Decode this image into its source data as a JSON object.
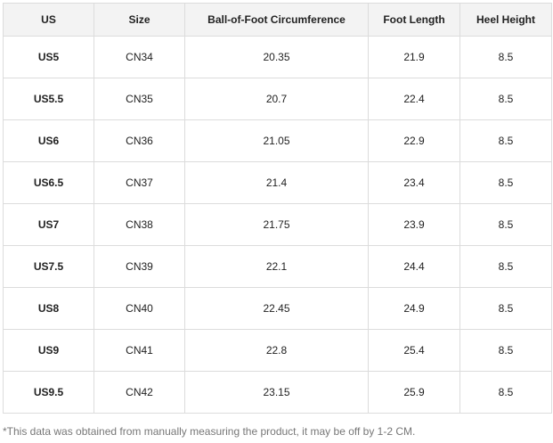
{
  "table": {
    "header": [
      "US",
      "Size",
      "Ball-of-Foot Circumference",
      "Foot Length",
      "Heel Height"
    ],
    "rows": [
      [
        "US5",
        "CN34",
        "20.35",
        "21.9",
        "8.5"
      ],
      [
        "US5.5",
        "CN35",
        "20.7",
        "22.4",
        "8.5"
      ],
      [
        "US6",
        "CN36",
        "21.05",
        "22.9",
        "8.5"
      ],
      [
        "US6.5",
        "CN37",
        "21.4",
        "23.4",
        "8.5"
      ],
      [
        "US7",
        "CN38",
        "21.75",
        "23.9",
        "8.5"
      ],
      [
        "US7.5",
        "CN39",
        "22.1",
        "24.4",
        "8.5"
      ],
      [
        "US8",
        "CN40",
        "22.45",
        "24.9",
        "8.5"
      ],
      [
        "US9",
        "CN41",
        "22.8",
        "25.4",
        "8.5"
      ],
      [
        "US9.5",
        "CN42",
        "23.15",
        "25.9",
        "8.5"
      ]
    ]
  },
  "footnote": "*This data was obtained from manually measuring the product, it may be off by 1-2 CM."
}
